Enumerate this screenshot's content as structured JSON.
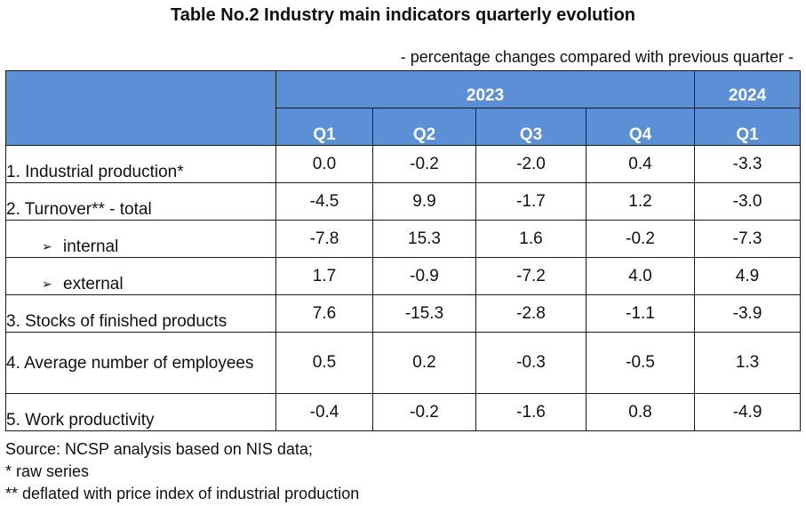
{
  "title": "Table No.2 Industry main indicators quarterly evolution",
  "subtitle": "- percentage changes compared with previous quarter -",
  "header": {
    "years": [
      {
        "label": "2023",
        "span": 4
      },
      {
        "label": "2024",
        "span": 1
      }
    ],
    "quarters": [
      "Q1",
      "Q2",
      "Q3",
      "Q4",
      "Q1"
    ]
  },
  "rows": [
    {
      "label": "1. Industrial production*",
      "sub": false,
      "values": [
        "0.0",
        "-0.2",
        "-2.0",
        "0.4",
        "-3.3"
      ]
    },
    {
      "label": "2. Turnover** - total",
      "sub": false,
      "values": [
        "-4.5",
        "9.9",
        "-1.7",
        "1.2",
        "-3.0"
      ]
    },
    {
      "label": "internal",
      "sub": true,
      "values": [
        "-7.8",
        "15.3",
        "1.6",
        "-0.2",
        "-7.3"
      ]
    },
    {
      "label": "external",
      "sub": true,
      "values": [
        "1.7",
        "-0.9",
        "-7.2",
        "4.0",
        "4.9"
      ]
    },
    {
      "label": "3. Stocks of finished products",
      "sub": false,
      "values": [
        "7.6",
        "-15.3",
        "-2.8",
        "-1.1",
        "-3.9"
      ]
    },
    {
      "label": "4. Average number of employees",
      "sub": false,
      "tall": true,
      "values": [
        "0.5",
        "0.2",
        "-0.3",
        "-0.5",
        "1.3"
      ]
    },
    {
      "label": "5. Work productivity",
      "sub": false,
      "values": [
        "-0.4",
        "-0.2",
        "-1.6",
        "0.8",
        "-4.9"
      ]
    }
  ],
  "sub_arrow_glyph": "➢",
  "footnotes": [
    "Source: NCSP analysis based on NIS data;",
    "* raw series",
    "** deflated with price index of industrial production"
  ],
  "colors": {
    "header_bg": "#5b8fd6",
    "header_text": "#ffffff",
    "border": "#1a1a1a"
  }
}
